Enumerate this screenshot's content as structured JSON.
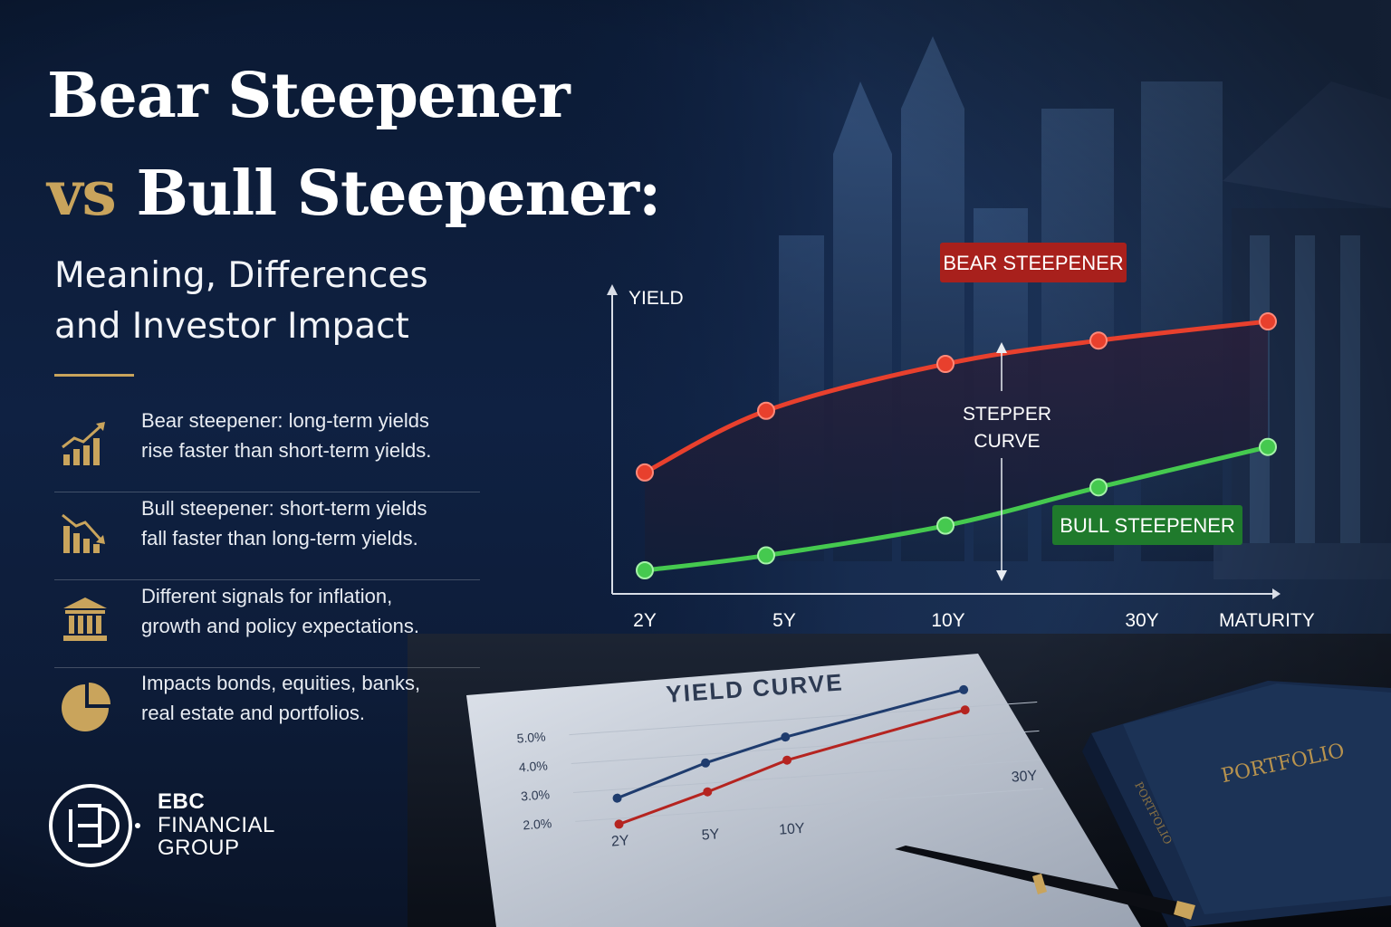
{
  "title": {
    "line1": "Bear Steepener",
    "vs": "vs",
    "line2_rest": "Bull Steepener:",
    "subtitle_line1": "Meaning, Differences",
    "subtitle_line2": "and Investor Impact"
  },
  "bullets": [
    {
      "icon": "rising-bar-chart-icon",
      "line1": "Bear steepener: long-term yields",
      "line2": "rise faster than short-term yields."
    },
    {
      "icon": "falling-bar-chart-icon",
      "line1": "Bull steepener: short-term yields",
      "line2": "fall faster than long-term yields."
    },
    {
      "icon": "bank-building-icon",
      "line1": "Different signals for inflation,",
      "line2": "growth and policy expectations."
    },
    {
      "icon": "pie-chart-icon",
      "line1": "Impacts bonds, equities, banks,",
      "line2": "real estate and portfolios."
    }
  ],
  "brand": {
    "line1": "EBC",
    "line2": "FINANCIAL",
    "line3": "GROUP"
  },
  "colors": {
    "gold": "#c9a45c",
    "bear": "#e8402d",
    "bull": "#45c94f",
    "bear_tag_bg": "#a8201c",
    "bull_tag_bg": "#1f7a2c",
    "navy": "#0f2142"
  },
  "chart_data": [
    {
      "type": "line",
      "ylabel": "YIELD",
      "xlabel": "MATURITY",
      "tick_labels": [
        "2Y",
        "5Y",
        "10Y",
        "30Y"
      ],
      "annotation_line1": "STEPPER",
      "annotation_line2": "CURVE",
      "legend_placement": "inline labels",
      "series": [
        {
          "name": "BEAR STEEPENER",
          "points": [
            [
              2,
              3.3
            ],
            [
              5,
              4.75
            ],
            [
              10,
              5.85
            ],
            [
              20,
              6.4
            ],
            [
              30,
              6.85
            ]
          ]
        },
        {
          "name": "BULL STEEPENER",
          "points": [
            [
              2,
              1.0
            ],
            [
              5,
              1.35
            ],
            [
              10,
              2.05
            ],
            [
              20,
              2.95
            ],
            [
              30,
              3.9
            ]
          ]
        }
      ]
    },
    {
      "type": "line",
      "title": "YIELD CURVE",
      "y_tick_labels": [
        "5.0%",
        "4.0%",
        "3.0%",
        "2.0%"
      ],
      "ylim": [
        2.0,
        5.0
      ],
      "x_tick_labels": [
        "2Y",
        "5Y",
        "10Y",
        "30Y"
      ],
      "series": [
        {
          "values": [
            [
              2,
              2.7
            ],
            [
              5,
              3.7
            ],
            [
              10,
              4.4
            ],
            [
              30,
              5.6
            ]
          ]
        },
        {
          "values": [
            [
              2,
              1.8
            ],
            [
              5,
              2.7
            ],
            [
              10,
              3.6
            ],
            [
              30,
              4.9
            ]
          ]
        }
      ]
    }
  ],
  "book": {
    "cover_text": "PORTFOLIO",
    "spine_text": "PORTFOLIO"
  }
}
